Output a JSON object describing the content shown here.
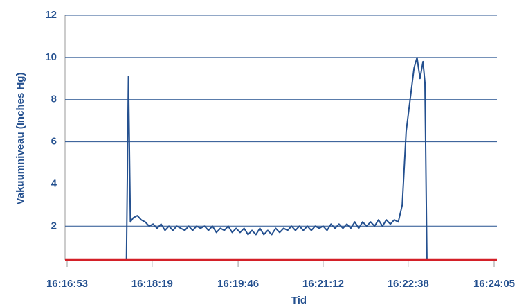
{
  "chart_data": {
    "type": "line",
    "ylabel": "Vakuumniveau (Inches Hg)",
    "xlabel": "Tid",
    "x": [
      "16:17:53",
      "16:17:55",
      "16:17:57",
      "16:18:00",
      "16:18:04",
      "16:18:08",
      "16:18:12",
      "16:18:16",
      "16:18:20",
      "16:18:24",
      "16:18:28",
      "16:18:32",
      "16:18:36",
      "16:18:40",
      "16:18:44",
      "16:18:48",
      "16:18:52",
      "16:18:56",
      "16:19:00",
      "16:19:04",
      "16:19:08",
      "16:19:12",
      "16:19:16",
      "16:19:20",
      "16:19:24",
      "16:19:28",
      "16:19:32",
      "16:19:36",
      "16:19:40",
      "16:19:44",
      "16:19:48",
      "16:19:52",
      "16:19:56",
      "16:20:00",
      "16:20:04",
      "16:20:08",
      "16:20:12",
      "16:20:16",
      "16:20:20",
      "16:20:24",
      "16:20:28",
      "16:20:32",
      "16:20:36",
      "16:20:40",
      "16:20:44",
      "16:20:48",
      "16:20:52",
      "16:20:56",
      "16:21:00",
      "16:21:04",
      "16:21:08",
      "16:21:12",
      "16:21:16",
      "16:21:20",
      "16:21:24",
      "16:21:28",
      "16:21:32",
      "16:21:36",
      "16:21:40",
      "16:21:44",
      "16:21:48",
      "16:21:52",
      "16:21:56",
      "16:22:00",
      "16:22:04",
      "16:22:08",
      "16:22:12",
      "16:22:16",
      "16:22:20",
      "16:22:24",
      "16:22:28",
      "16:22:32",
      "16:22:36",
      "16:22:40",
      "16:22:44",
      "16:22:47",
      "16:22:50",
      "16:22:53",
      "16:22:55",
      "16:22:57"
    ],
    "series": [
      {
        "color": "#24508f",
        "values": [
          0.4,
          9.1,
          2.2,
          2.4,
          2.5,
          2.3,
          2.2,
          2.0,
          2.1,
          1.9,
          2.1,
          1.8,
          2.0,
          1.8,
          2.0,
          1.9,
          1.8,
          2.0,
          1.8,
          2.0,
          1.9,
          2.0,
          1.8,
          2.0,
          1.7,
          1.9,
          1.8,
          2.0,
          1.7,
          1.9,
          1.7,
          1.9,
          1.6,
          1.8,
          1.6,
          1.9,
          1.6,
          1.8,
          1.6,
          1.9,
          1.7,
          1.9,
          1.8,
          2.0,
          1.8,
          2.0,
          1.8,
          2.0,
          1.8,
          2.0,
          1.9,
          2.0,
          1.8,
          2.1,
          1.9,
          2.1,
          1.9,
          2.1,
          1.9,
          2.2,
          1.9,
          2.2,
          2.0,
          2.2,
          2.0,
          2.3,
          2.0,
          2.3,
          2.1,
          2.3,
          2.2,
          3.0,
          6.5,
          8.0,
          9.5,
          10.0,
          9.0,
          9.8,
          8.8,
          0.4
        ]
      }
    ],
    "xlim": [
      "16:16:53",
      "16:24:05"
    ],
    "xticks": [
      "16:16:53",
      "16:18:19",
      "16:19:46",
      "16:21:12",
      "16:22:38",
      "16:24:05"
    ],
    "ylim": [
      0.4,
      12
    ],
    "yticks": [
      2,
      4,
      6,
      8,
      10,
      12
    ],
    "grid": true,
    "grid_color": "#24508f",
    "axis_color": "#d42028"
  }
}
